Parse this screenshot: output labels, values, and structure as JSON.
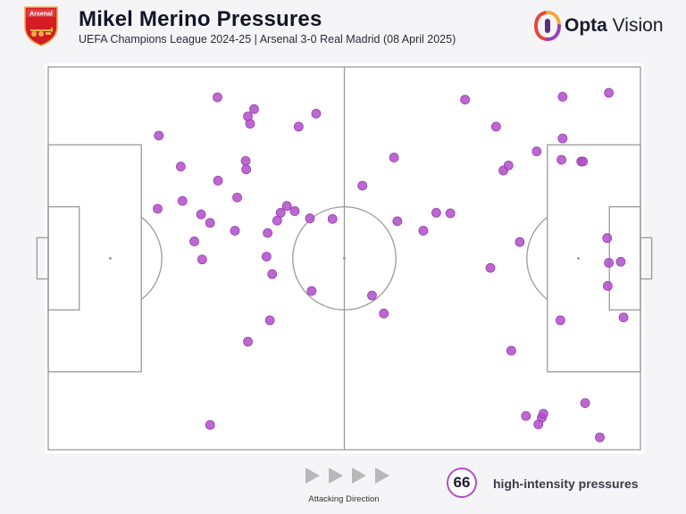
{
  "header": {
    "title": "Mikel Merino Pressures",
    "subtitle": "UEFA Champions League 2024-25 | Arsenal 3-0 Real Madrid (08 April 2025)",
    "crest_text": "Arsenal",
    "brand_bold": "Opta",
    "brand_light": " Vision"
  },
  "colors": {
    "marker": "#b04ec9",
    "pitch_line": "#9a9a9a",
    "pitch_bg": "#ffffff",
    "crest_red": "#d51b23",
    "crest_gold": "#e8b04a"
  },
  "footer": {
    "direction_label": "Attacking Direction",
    "count": "66",
    "count_label": "high-intensity pressures"
  },
  "chart_data": {
    "type": "scatter",
    "title": "Mikel Merino Pressures",
    "subtitle": "UEFA Champions League 2024-25 | Arsenal 3-0 Real Madrid (08 April 2025)",
    "pitch": {
      "length": 105,
      "width": 68
    },
    "attacking_direction": "left-to-right",
    "series": [
      {
        "points": [
          [
            28.7,
            4.4
          ],
          [
            30.0,
            62.6
          ],
          [
            36.5,
            60.5
          ],
          [
            35.4,
            59.2
          ],
          [
            35.8,
            57.9
          ],
          [
            47.5,
            59.7
          ],
          [
            44.4,
            57.4
          ],
          [
            19.6,
            55.8
          ],
          [
            35.0,
            51.3
          ],
          [
            35.1,
            49.8
          ],
          [
            23.5,
            50.3
          ],
          [
            30.1,
            47.8
          ],
          [
            33.5,
            44.8
          ],
          [
            23.8,
            44.2
          ],
          [
            19.4,
            42.8
          ],
          [
            27.1,
            41.8
          ],
          [
            28.7,
            40.3
          ],
          [
            43.7,
            42.4
          ],
          [
            46.4,
            41.1
          ],
          [
            42.3,
            43.3
          ],
          [
            41.2,
            42.1
          ],
          [
            40.6,
            40.7
          ],
          [
            33.1,
            38.9
          ],
          [
            38.9,
            38.5
          ],
          [
            25.9,
            37.0
          ],
          [
            38.7,
            34.3
          ],
          [
            39.7,
            31.2
          ],
          [
            27.3,
            33.8
          ],
          [
            46.7,
            28.2
          ],
          [
            39.3,
            23.0
          ],
          [
            35.4,
            19.2
          ],
          [
            50.4,
            41.0
          ],
          [
            55.7,
            46.9
          ],
          [
            61.3,
            51.9
          ],
          [
            57.4,
            27.4
          ],
          [
            59.5,
            24.2
          ],
          [
            61.9,
            40.6
          ],
          [
            66.5,
            38.9
          ],
          [
            68.8,
            42.1
          ],
          [
            71.3,
            42.0
          ],
          [
            73.9,
            62.2
          ],
          [
            79.4,
            57.4
          ],
          [
            80.7,
            49.6
          ],
          [
            81.6,
            50.5
          ],
          [
            83.6,
            36.9
          ],
          [
            78.4,
            32.3
          ],
          [
            82.1,
            17.6
          ],
          [
            86.6,
            53.0
          ],
          [
            91.2,
            62.7
          ],
          [
            91.2,
            55.3
          ],
          [
            91.0,
            51.5
          ],
          [
            94.5,
            51.2
          ],
          [
            94.8,
            51.2
          ],
          [
            99.4,
            63.4
          ],
          [
            99.1,
            37.6
          ],
          [
            101.5,
            33.4
          ],
          [
            99.4,
            33.2
          ],
          [
            99.2,
            29.1
          ],
          [
            102.0,
            23.5
          ],
          [
            90.8,
            23.0
          ],
          [
            95.2,
            8.3
          ],
          [
            87.5,
            5.7
          ],
          [
            87.8,
            6.4
          ],
          [
            84.7,
            6.0
          ],
          [
            86.9,
            4.5
          ],
          [
            97.8,
            2.2
          ]
        ]
      }
    ]
  }
}
